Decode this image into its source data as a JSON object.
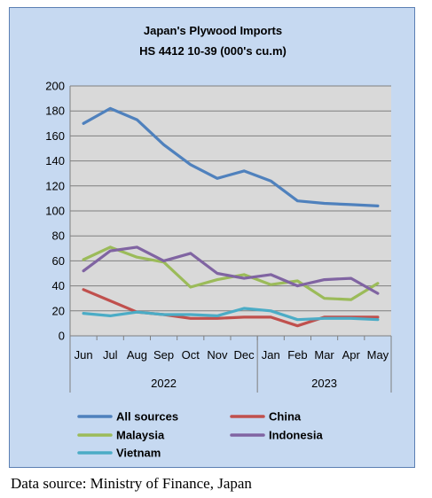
{
  "chart_data": {
    "type": "line",
    "title_lines": [
      "Japan's Plywood Imports",
      "HS 4412 10-39  (000's cu.m)"
    ],
    "categories": [
      "Jun",
      "Jul",
      "Aug",
      "Sep",
      "Oct",
      "Nov",
      "Dec",
      "Jan",
      "Feb",
      "Mar",
      "Apr",
      "May"
    ],
    "year_groups": [
      {
        "label": "2022",
        "count": 7
      },
      {
        "label": "2023",
        "count": 5
      }
    ],
    "ylim": [
      0,
      200
    ],
    "yticks": [
      0,
      20,
      40,
      60,
      80,
      100,
      120,
      140,
      160,
      180,
      200
    ],
    "grid": true,
    "legend_position": "bottom",
    "series": [
      {
        "name": "All sources",
        "color": "#4f81bd",
        "values": [
          170,
          182,
          173,
          153,
          137,
          126,
          132,
          124,
          108,
          106,
          105,
          104
        ]
      },
      {
        "name": "China",
        "color": "#c0504d",
        "values": [
          37,
          28,
          19,
          17,
          14,
          14,
          15,
          15,
          8,
          15,
          15,
          15
        ]
      },
      {
        "name": "Malaysia",
        "color": "#9bbb59",
        "values": [
          61,
          71,
          63,
          59,
          39,
          45,
          49,
          41,
          44,
          30,
          29,
          42
        ]
      },
      {
        "name": "Indonesia",
        "color": "#8064a2",
        "values": [
          52,
          68,
          71,
          60,
          66,
          50,
          46,
          49,
          40,
          45,
          46,
          34
        ]
      },
      {
        "name": "Vietnam",
        "color": "#4bacc6",
        "values": [
          18,
          16,
          19,
          17,
          17,
          16,
          22,
          20,
          13,
          14,
          14,
          13
        ]
      }
    ]
  },
  "footer": {
    "source": "Data source: Ministry of Finance, Japan"
  }
}
